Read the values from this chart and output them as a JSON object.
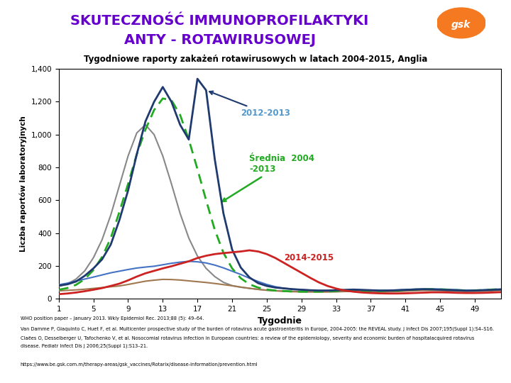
{
  "title_main_line1": "SKUTECZNOŚĆ IMMUNOPROFILAKTYKI",
  "title_main_line2": "ANTY - ROTAWIRUSOWEJ",
  "title_main_color": "#6600cc",
  "subtitle": "Tygodniowe raporty zakażeń rotawirusowych w latach 2004-2015, Anglia",
  "xlabel": "Tygodnie",
  "ylabel": "Liczba raportów laboratoryjnych",
  "ylim": [
    0,
    1400
  ],
  "xlim": [
    1,
    52
  ],
  "yticks": [
    0,
    200,
    400,
    600,
    800,
    1000,
    1200,
    1400
  ],
  "ytick_labels": [
    "0",
    "200",
    "400",
    "600",
    "800",
    "1,000",
    "1,200",
    "1,400"
  ],
  "xticks": [
    1,
    5,
    9,
    13,
    17,
    21,
    25,
    29,
    33,
    37,
    41,
    45,
    49
  ],
  "annotation_2012": "2012-2013",
  "annotation_srednia": "Średnia  2004\n-2013",
  "annotation_2014": "2014-2015",
  "footnotes": [
    "WHO position paper – January 2013. Wkly Epidemiol Rec. 2013;88 (5): 49–64.",
    "Van Damme P, Giaquinto C, Huet F, et al. Multicenter prospective study of the burden of rotavirus acute gastroenteritis in Europe, 2004-2005: the REVEAL study. J Infect Dis 2007;195(Suppl 1):S4–S16.",
    "Claëes O, Desselberger U, Tafochenko V, et al. Nosocomial rotavirus infection in European countries: a review of the epidemiology, severity and economic burden of hospitalacquired rotavirus",
    "disease. Pediatr Infect Dis J 2006;25(Suppl 1):S13–21.",
    "",
    "https://www.be.gsk.com.m/therapy-areas/gsk_vaccines/Rotarix/disease-information/prevention.html"
  ],
  "bg_color": "#ffffff",
  "plot_bg_color": "#ffffff",
  "color_navy": "#1f3a6e",
  "color_gray": "#888888",
  "color_green": "#22aa22",
  "color_blue": "#4472c4",
  "color_red": "#cc2222",
  "color_brown": "#a07850",
  "color_annot_2012": "#5599cc",
  "color_annot_srednia": "#22aa22",
  "color_annot_2014": "#cc2222"
}
